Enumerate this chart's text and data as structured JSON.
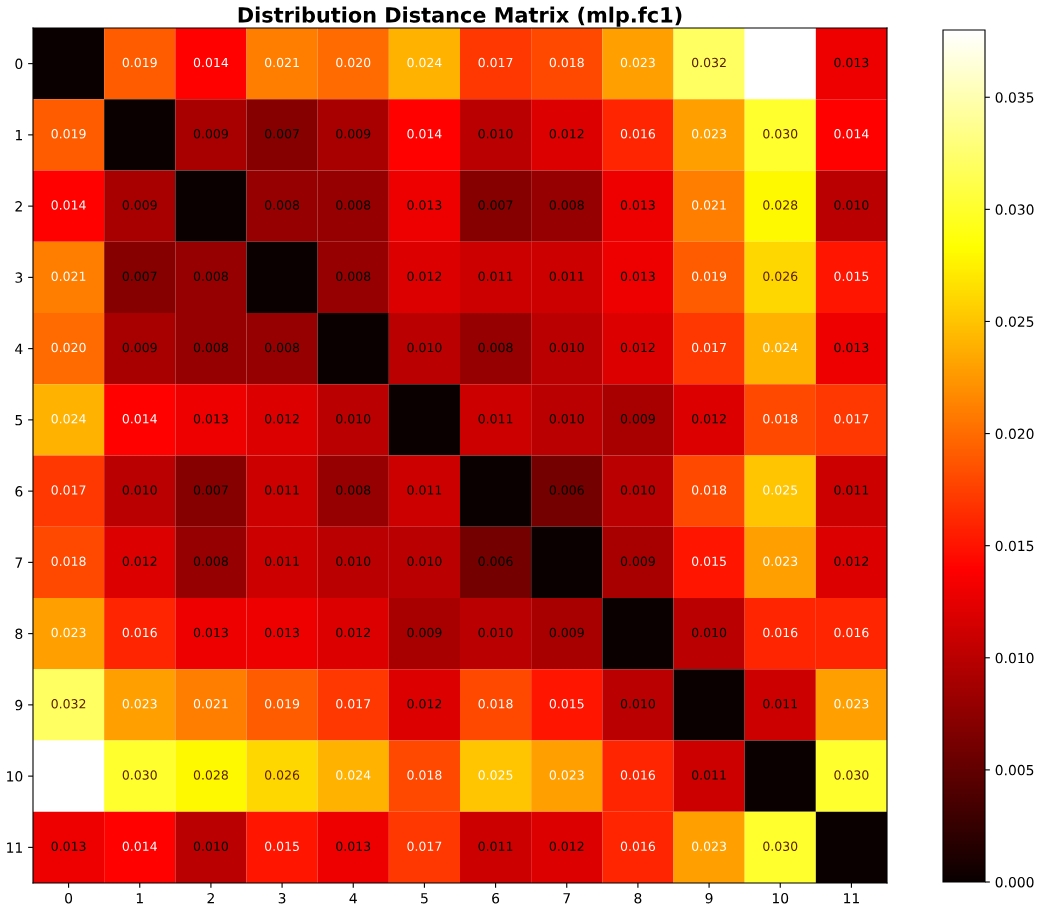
{
  "chart_data": {
    "type": "heatmap",
    "title": "Distribution Distance Matrix (mlp.fc1)",
    "categories": [
      "0",
      "1",
      "2",
      "3",
      "4",
      "5",
      "6",
      "7",
      "8",
      "9",
      "10",
      "11"
    ],
    "y_categories": [
      "0",
      "1",
      "2",
      "3",
      "4",
      "5",
      "6",
      "7",
      "8",
      "9",
      "10",
      "11"
    ],
    "cells": [
      [
        0.0,
        0.019,
        0.014,
        0.021,
        0.02,
        0.024,
        0.017,
        0.018,
        0.023,
        0.032,
        0.038,
        0.013
      ],
      [
        0.019,
        0.0,
        0.009,
        0.007,
        0.009,
        0.014,
        0.01,
        0.012,
        0.016,
        0.023,
        0.03,
        0.014
      ],
      [
        0.014,
        0.009,
        0.0,
        0.008,
        0.008,
        0.013,
        0.007,
        0.008,
        0.013,
        0.021,
        0.028,
        0.01
      ],
      [
        0.021,
        0.007,
        0.008,
        0.0,
        0.008,
        0.012,
        0.011,
        0.011,
        0.013,
        0.019,
        0.026,
        0.015
      ],
      [
        0.02,
        0.009,
        0.008,
        0.008,
        0.0,
        0.01,
        0.008,
        0.01,
        0.012,
        0.017,
        0.024,
        0.013
      ],
      [
        0.024,
        0.014,
        0.013,
        0.012,
        0.01,
        0.0,
        0.011,
        0.01,
        0.009,
        0.012,
        0.018,
        0.017
      ],
      [
        0.017,
        0.01,
        0.007,
        0.011,
        0.008,
        0.011,
        0.0,
        0.006,
        0.01,
        0.018,
        0.025,
        0.011
      ],
      [
        0.018,
        0.012,
        0.008,
        0.011,
        0.01,
        0.01,
        0.006,
        0.0,
        0.009,
        0.015,
        0.023,
        0.012
      ],
      [
        0.023,
        0.016,
        0.013,
        0.013,
        0.012,
        0.009,
        0.01,
        0.009,
        0.0,
        0.01,
        0.016,
        0.016
      ],
      [
        0.032,
        0.023,
        0.021,
        0.019,
        0.017,
        0.012,
        0.018,
        0.015,
        0.01,
        0.0,
        0.011,
        0.023
      ],
      [
        0.038,
        0.03,
        0.028,
        0.026,
        0.024,
        0.018,
        0.025,
        0.023,
        0.016,
        0.011,
        0.0,
        0.03
      ],
      [
        0.013,
        0.014,
        0.01,
        0.015,
        0.013,
        0.017,
        0.011,
        0.012,
        0.016,
        0.023,
        0.03,
        0.0
      ]
    ],
    "cell_labels": [
      [
        null,
        "0.019",
        "0.014",
        "0.021",
        "0.020",
        "0.024",
        "0.017",
        "0.018",
        "0.023",
        "0.032",
        null,
        "0.013"
      ],
      [
        "0.019",
        null,
        "0.009",
        "0.007",
        "0.009",
        "0.014",
        "0.010",
        "0.012",
        "0.016",
        "0.023",
        "0.030",
        "0.014"
      ],
      [
        "0.014",
        "0.009",
        null,
        "0.008",
        "0.008",
        "0.013",
        "0.007",
        "0.008",
        "0.013",
        "0.021",
        "0.028",
        "0.010"
      ],
      [
        "0.021",
        "0.007",
        "0.008",
        null,
        "0.008",
        "0.012",
        "0.011",
        "0.011",
        "0.013",
        "0.019",
        "0.026",
        "0.015"
      ],
      [
        "0.020",
        "0.009",
        "0.008",
        "0.008",
        null,
        "0.010",
        "0.008",
        "0.010",
        "0.012",
        "0.017",
        "0.024",
        "0.013"
      ],
      [
        "0.024",
        "0.014",
        "0.013",
        "0.012",
        "0.010",
        null,
        "0.011",
        "0.010",
        "0.009",
        "0.012",
        "0.018",
        "0.017"
      ],
      [
        "0.017",
        "0.010",
        "0.007",
        "0.011",
        "0.008",
        "0.011",
        null,
        "0.006",
        "0.010",
        "0.018",
        "0.025",
        "0.011"
      ],
      [
        "0.018",
        "0.012",
        "0.008",
        "0.011",
        "0.010",
        "0.010",
        "0.006",
        null,
        "0.009",
        "0.015",
        "0.023",
        "0.012"
      ],
      [
        "0.023",
        "0.016",
        "0.013",
        "0.013",
        "0.012",
        "0.009",
        "0.010",
        "0.009",
        null,
        "0.010",
        "0.016",
        "0.016"
      ],
      [
        "0.032",
        "0.023",
        "0.021",
        "0.019",
        "0.017",
        "0.012",
        "0.018",
        "0.015",
        "0.010",
        null,
        "0.011",
        "0.023"
      ],
      [
        null,
        "0.030",
        "0.028",
        "0.026",
        "0.024",
        "0.018",
        "0.025",
        "0.023",
        "0.016",
        "0.011",
        null,
        "0.030"
      ],
      [
        "0.013",
        "0.014",
        "0.010",
        "0.015",
        "0.013",
        "0.017",
        "0.011",
        "0.012",
        "0.016",
        "0.023",
        "0.030",
        null
      ]
    ],
    "clim": [
      0.0,
      0.038
    ],
    "cticks": [
      {
        "value": 0.0,
        "label": "0.000"
      },
      {
        "value": 0.005,
        "label": "0.005"
      },
      {
        "value": 0.01,
        "label": "0.010"
      },
      {
        "value": 0.015,
        "label": "0.015"
      },
      {
        "value": 0.02,
        "label": "0.020"
      },
      {
        "value": 0.025,
        "label": "0.025"
      },
      {
        "value": 0.03,
        "label": "0.030"
      },
      {
        "value": 0.035,
        "label": "0.035"
      }
    ]
  }
}
